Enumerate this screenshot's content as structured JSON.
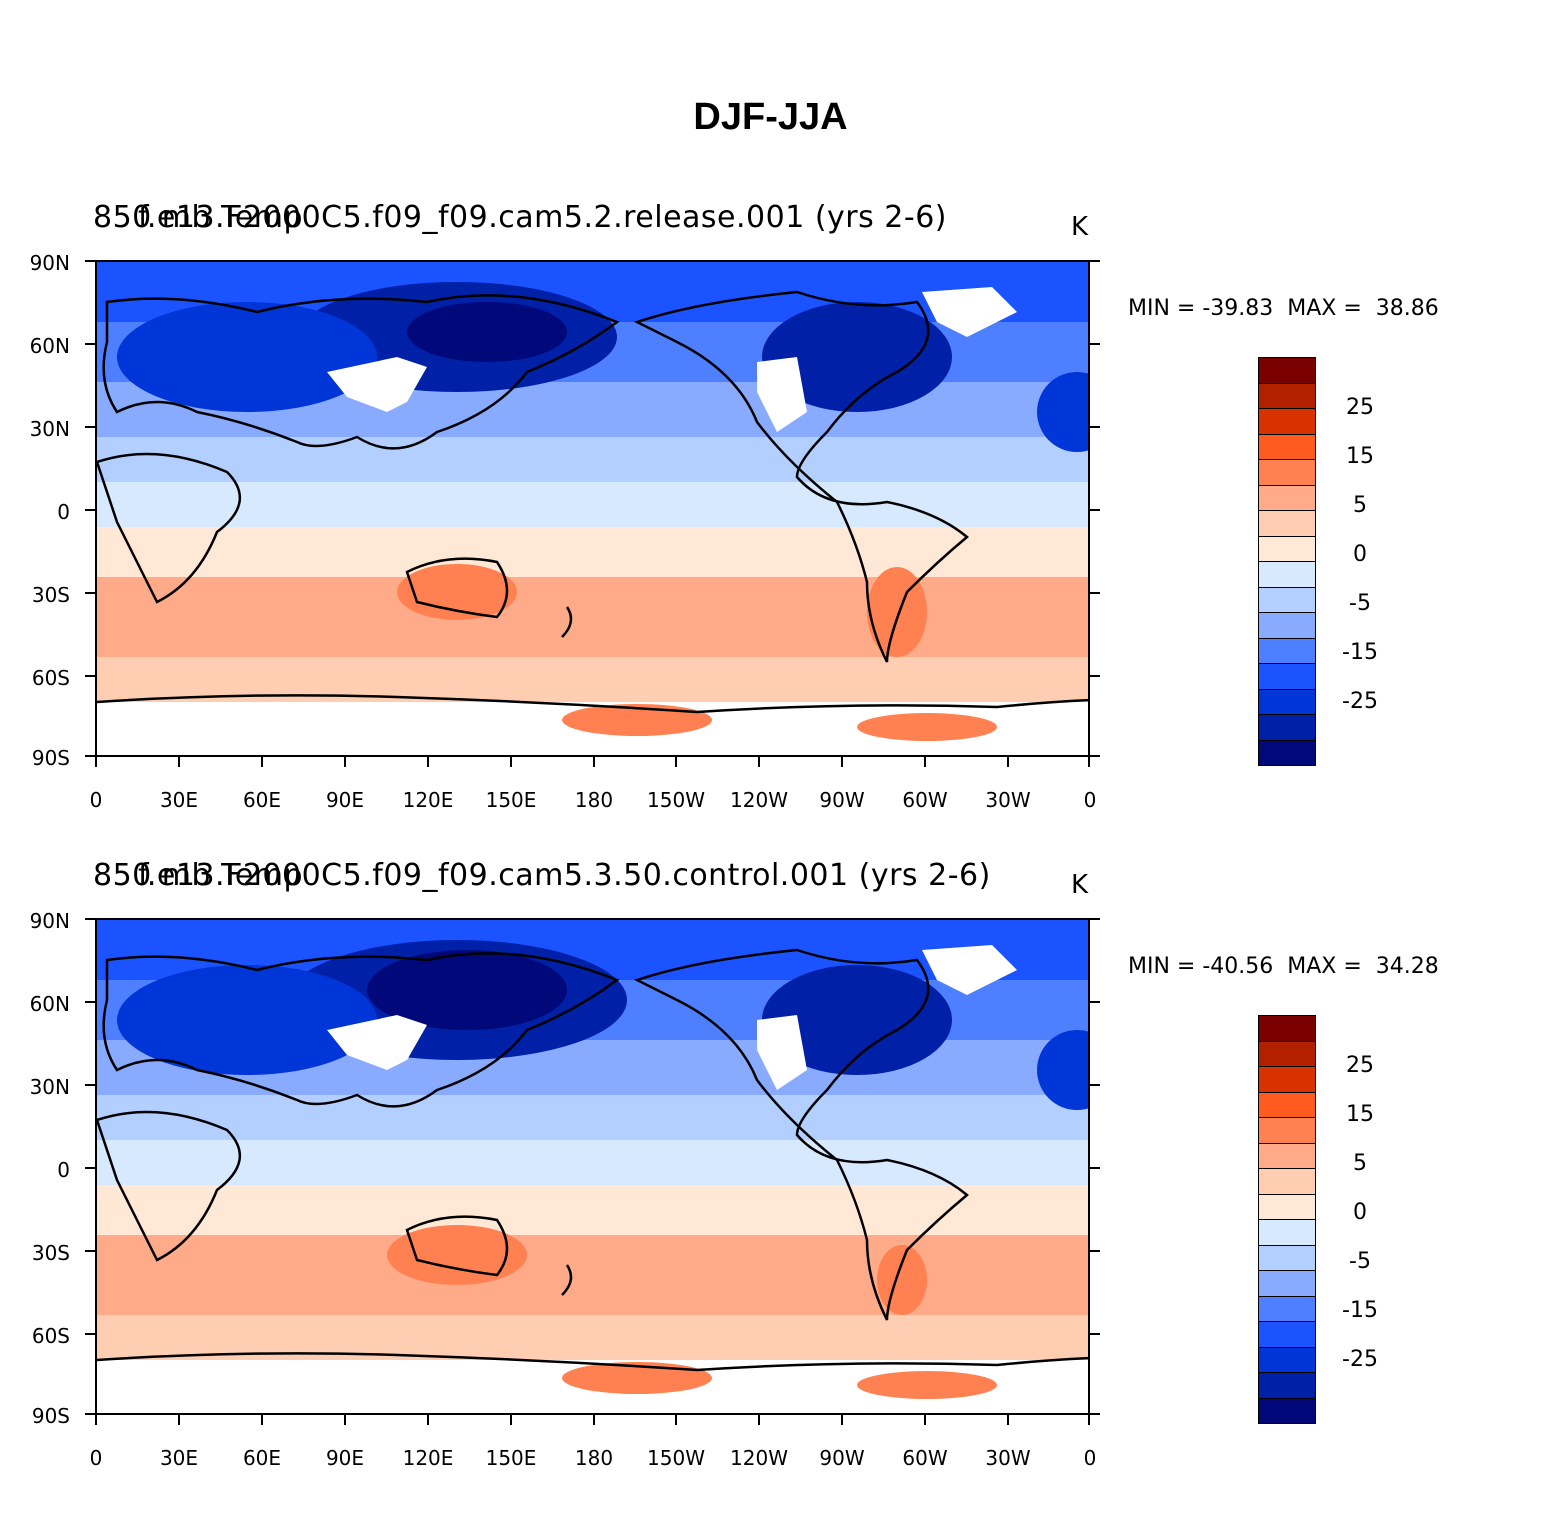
{
  "title": "DJF-JJA",
  "panels": [
    {
      "title_overlap": "850 mb Temp",
      "title_case": "f.e13.F2000C5.f09_f09.cam5.2.release.001 (yrs 2-6)",
      "units": "K",
      "minmax": "MIN = -39.83  MAX =  38.86"
    },
    {
      "title_overlap": "850 mb Temp",
      "title_case": "f.e13.F2000C5.f09_f09.cam5.3.50.control.001 (yrs 2-6)",
      "units": "K",
      "minmax": "MIN = -40.56  MAX =  34.28"
    }
  ],
  "axes": {
    "lat_labels": [
      "90N",
      "60N",
      "30N",
      "0",
      "30S",
      "60S",
      "90S"
    ],
    "lon_labels": [
      "0",
      "30E",
      "60E",
      "90E",
      "120E",
      "150E",
      "180",
      "150W",
      "120W",
      "90W",
      "60W",
      "30W",
      "0"
    ]
  },
  "colorbar": {
    "colors": [
      "#7a0000",
      "#b22000",
      "#d83200",
      "#ff5a20",
      "#ff8050",
      "#ffaa88",
      "#ffcdb2",
      "#ffe8d6",
      "#d6e9ff",
      "#b2cfff",
      "#88aaff",
      "#4d7fff",
      "#1a53ff",
      "#0035d8",
      "#0020a8",
      "#00087a"
    ],
    "labels": [
      "25",
      "15",
      "5",
      "0",
      "-5",
      "-15",
      "-25"
    ]
  },
  "colors": {
    "warm_light": "#ffcdb2",
    "warm_mid": "#ffaa88",
    "warm_strong": "#ff8050",
    "cool_light": "#d6e9ff",
    "cool_mid": "#88aaff",
    "cool_strong": "#1a53ff",
    "cool_deep": "#0020a8",
    "missing": "#ffffff"
  }
}
